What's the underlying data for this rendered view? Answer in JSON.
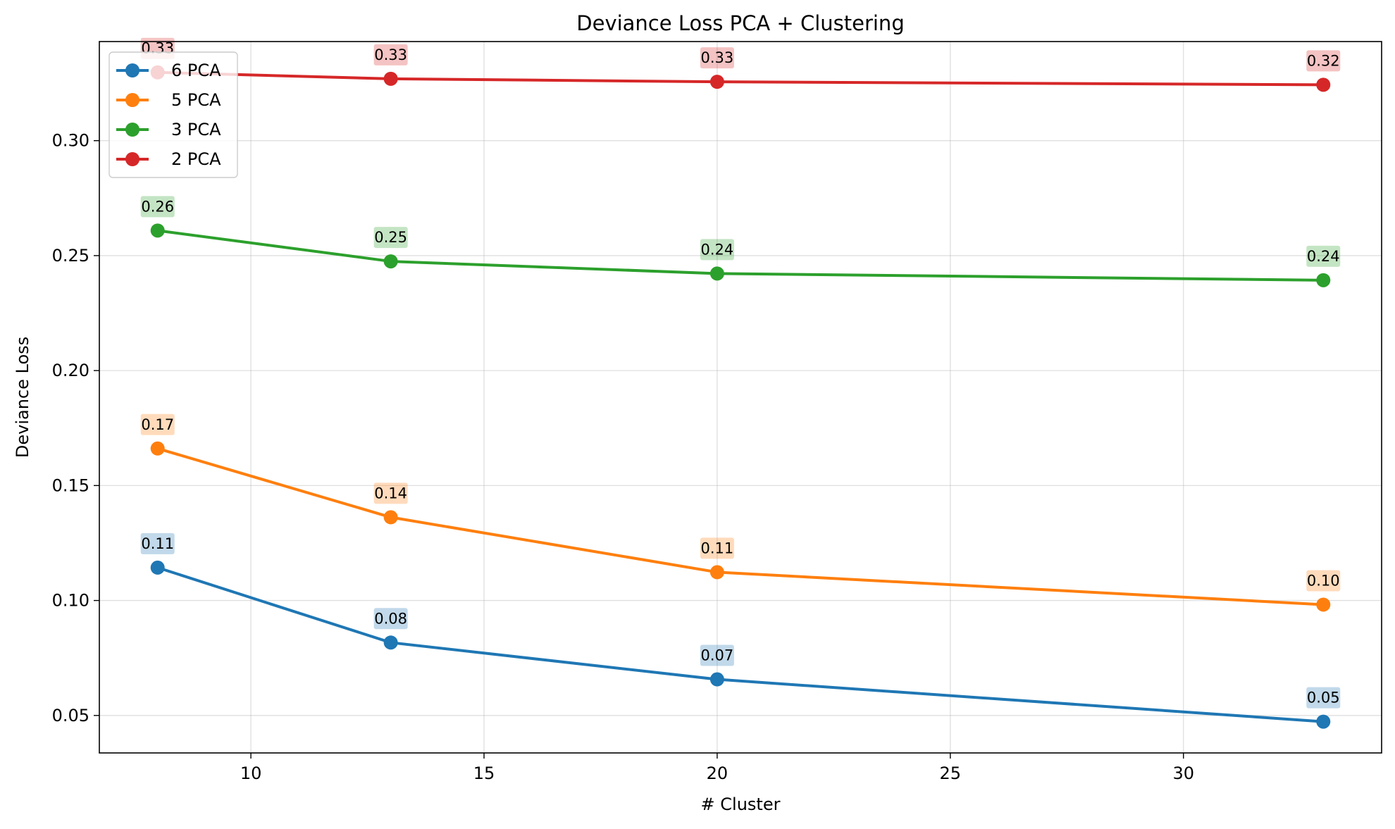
{
  "chart_data": {
    "type": "line",
    "title": "Deviance Loss PCA + Clustering",
    "xlabel": "# Cluster",
    "ylabel": "Deviance Loss",
    "x": [
      8,
      13,
      20,
      33
    ],
    "xlim": [
      6.75,
      34.25
    ],
    "ylim": [
      0.0337,
      0.3431
    ],
    "xticks": [
      10,
      15,
      20,
      25,
      30
    ],
    "xtick_labels": [
      "10",
      "15",
      "20",
      "25",
      "30"
    ],
    "yticks": [
      0.05,
      0.1,
      0.15,
      0.2,
      0.25,
      0.3
    ],
    "ytick_labels": [
      "0.05",
      "0.10",
      "0.15",
      "0.20",
      "0.25",
      "0.30"
    ],
    "grid": true,
    "legend_position": "top-left",
    "series": [
      {
        "name": "6 PCA",
        "color": "#1f77b4",
        "values": [
          0.1143,
          0.0817,
          0.0657,
          0.0473
        ],
        "labels": [
          "0.11",
          "0.08",
          "0.07",
          "0.05"
        ]
      },
      {
        "name": "5 PCA",
        "color": "#ff7f0e",
        "values": [
          0.1661,
          0.1362,
          0.1123,
          0.0982
        ],
        "labels": [
          "0.17",
          "0.14",
          "0.11",
          "0.10"
        ]
      },
      {
        "name": "3 PCA",
        "color": "#2ca02c",
        "values": [
          0.2609,
          0.2475,
          0.2422,
          0.2393
        ],
        "labels": [
          "0.26",
          "0.25",
          "0.24",
          "0.24"
        ]
      },
      {
        "name": "2 PCA",
        "color": "#d62728",
        "values": [
          0.3297,
          0.3269,
          0.3256,
          0.3243
        ],
        "labels": [
          "0.33",
          "0.33",
          "0.33",
          "0.32"
        ]
      }
    ]
  }
}
